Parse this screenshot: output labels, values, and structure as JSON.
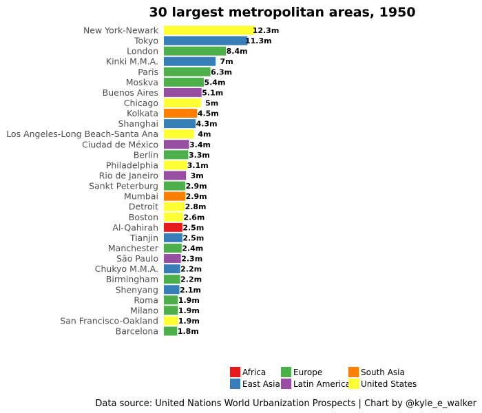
{
  "chart_data": {
    "type": "bar",
    "orientation": "horizontal",
    "title": "30 largest metropolitan areas, 1950",
    "caption": "Data source: United Nations World Urbanization Prospects | Chart by @kyle_e_walker",
    "xlabel": "",
    "ylabel": "",
    "xlim": [
      0,
      12.3
    ],
    "grid": false,
    "legend_position": "bottom",
    "legend": [
      {
        "name": "Africa",
        "color": "#E41A1C"
      },
      {
        "name": "East Asia",
        "color": "#377EB8"
      },
      {
        "name": "Europe",
        "color": "#4DAF4A"
      },
      {
        "name": "Latin America",
        "color": "#984EA3"
      },
      {
        "name": "South Asia",
        "color": "#FF7F00"
      },
      {
        "name": "United States",
        "color": "#FFFF33"
      }
    ],
    "bars": [
      {
        "city": "New York-Newark",
        "value": 12.3,
        "label": "12.3m",
        "region": "United States"
      },
      {
        "city": "Tokyo",
        "value": 11.3,
        "label": "11.3m",
        "region": "East Asia"
      },
      {
        "city": "London",
        "value": 8.4,
        "label": "8.4m",
        "region": "Europe"
      },
      {
        "city": "Kinki M.M.A.",
        "value": 7.0,
        "label": "7m",
        "region": "East Asia"
      },
      {
        "city": "Paris",
        "value": 6.3,
        "label": "6.3m",
        "region": "Europe"
      },
      {
        "city": "Moskva",
        "value": 5.4,
        "label": "5.4m",
        "region": "Europe"
      },
      {
        "city": "Buenos Aires",
        "value": 5.1,
        "label": "5.1m",
        "region": "Latin America"
      },
      {
        "city": "Chicago",
        "value": 5.0,
        "label": "5m",
        "region": "United States"
      },
      {
        "city": "Kolkata",
        "value": 4.5,
        "label": "4.5m",
        "region": "South Asia"
      },
      {
        "city": "Shanghai",
        "value": 4.3,
        "label": "4.3m",
        "region": "East Asia"
      },
      {
        "city": "Los Angeles-Long Beach-Santa Ana",
        "value": 4.0,
        "label": "4m",
        "region": "United States"
      },
      {
        "city": "Ciudad de México",
        "value": 3.4,
        "label": "3.4m",
        "region": "Latin America"
      },
      {
        "city": "Berlin",
        "value": 3.3,
        "label": "3.3m",
        "region": "Europe"
      },
      {
        "city": "Philadelphia",
        "value": 3.1,
        "label": "3.1m",
        "region": "United States"
      },
      {
        "city": "Rio de Janeiro",
        "value": 3.0,
        "label": "3m",
        "region": "Latin America"
      },
      {
        "city": "Sankt Peterburg",
        "value": 2.9,
        "label": "2.9m",
        "region": "Europe"
      },
      {
        "city": "Mumbai",
        "value": 2.9,
        "label": "2.9m",
        "region": "South Asia"
      },
      {
        "city": "Detroit",
        "value": 2.8,
        "label": "2.8m",
        "region": "United States"
      },
      {
        "city": "Boston",
        "value": 2.6,
        "label": "2.6m",
        "region": "United States"
      },
      {
        "city": "Al-Qahirah",
        "value": 2.5,
        "label": "2.5m",
        "region": "Africa"
      },
      {
        "city": "Tianjin",
        "value": 2.5,
        "label": "2.5m",
        "region": "East Asia"
      },
      {
        "city": "Manchester",
        "value": 2.4,
        "label": "2.4m",
        "region": "Europe"
      },
      {
        "city": "São Paulo",
        "value": 2.3,
        "label": "2.3m",
        "region": "Latin America"
      },
      {
        "city": "Chukyo M.M.A.",
        "value": 2.2,
        "label": "2.2m",
        "region": "East Asia"
      },
      {
        "city": "Birmingham",
        "value": 2.2,
        "label": "2.2m",
        "region": "Europe"
      },
      {
        "city": "Shenyang",
        "value": 2.1,
        "label": "2.1m",
        "region": "East Asia"
      },
      {
        "city": "Roma",
        "value": 1.9,
        "label": "1.9m",
        "region": "Europe"
      },
      {
        "city": "Milano",
        "value": 1.9,
        "label": "1.9m",
        "region": "Europe"
      },
      {
        "city": "San Francisco-Oakland",
        "value": 1.9,
        "label": "1.9m",
        "region": "United States"
      },
      {
        "city": "Barcelona",
        "value": 1.8,
        "label": "1.8m",
        "region": "Europe"
      }
    ]
  }
}
